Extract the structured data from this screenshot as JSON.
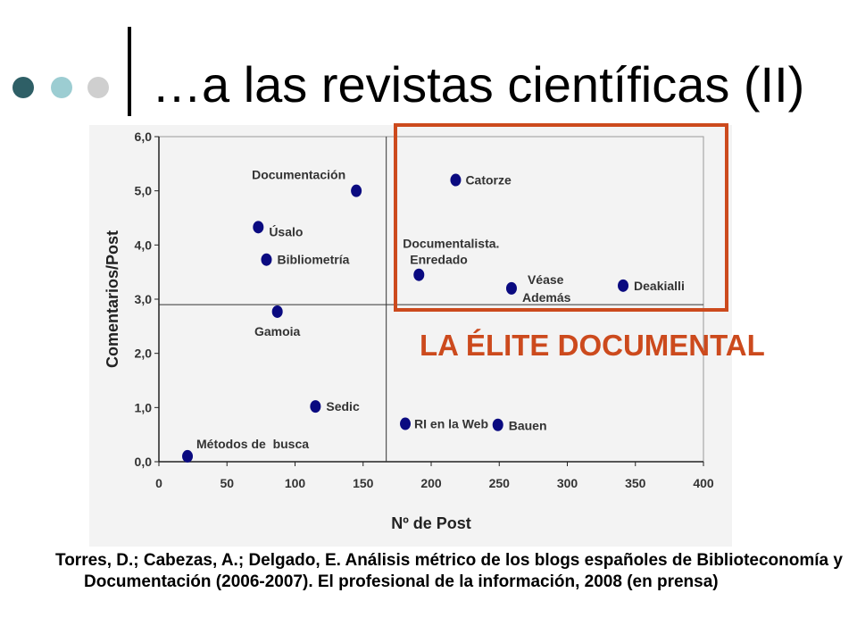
{
  "slide": {
    "title": "…a las revistas científicas (II)",
    "callout": "LA ÉLITE DOCUMENTAL",
    "citation": "Torres, D.; Cabezas, A.; Delgado, E. Análisis métrico de los blogs españoles de Biblioteconomía y Documentación (2006-2007). El profesional de la información, 2008 (en prensa)",
    "accent_color": "#cc4a1d",
    "bullet_colors": [
      "#2e5f66",
      "#9ccdd2",
      "#cfcfcf"
    ]
  },
  "chart_data": {
    "type": "scatter",
    "title": "",
    "xlabel": "Nº de Post",
    "ylabel": "Comentarios/Post",
    "xlim": [
      0,
      400
    ],
    "ylim": [
      0,
      6
    ],
    "xticks": [
      "0",
      "50",
      "100",
      "150",
      "200",
      "250",
      "300",
      "350",
      "400"
    ],
    "yticks": [
      "0,0",
      "1,0",
      "2,0",
      "3,0",
      "4,0",
      "5,0",
      "6,0"
    ],
    "reference_lines": {
      "x": 167,
      "y": 2.9
    },
    "marker_color": "#0a0a80",
    "points": [
      {
        "label": "Documentación",
        "x": 145,
        "y": 5.0
      },
      {
        "label": "Catorze",
        "x": 218,
        "y": 5.2
      },
      {
        "label": "Úsalo",
        "x": 73,
        "y": 4.33
      },
      {
        "label": "Bibliometría",
        "x": 79,
        "y": 3.73
      },
      {
        "label": "Documentalista. Enredado",
        "x": 191,
        "y": 3.45
      },
      {
        "label": "Véase Además",
        "x": 259,
        "y": 3.2
      },
      {
        "label": "Deakialli",
        "x": 341,
        "y": 3.25
      },
      {
        "label": "Gamoia",
        "x": 87,
        "y": 2.77
      },
      {
        "label": "Sedic",
        "x": 115,
        "y": 1.02
      },
      {
        "label": "RI en la Web",
        "x": 181,
        "y": 0.7
      },
      {
        "label": "Bauen",
        "x": 249,
        "y": 0.68
      },
      {
        "label": "Métodos de  busca",
        "x": 21,
        "y": 0.1
      }
    ]
  }
}
